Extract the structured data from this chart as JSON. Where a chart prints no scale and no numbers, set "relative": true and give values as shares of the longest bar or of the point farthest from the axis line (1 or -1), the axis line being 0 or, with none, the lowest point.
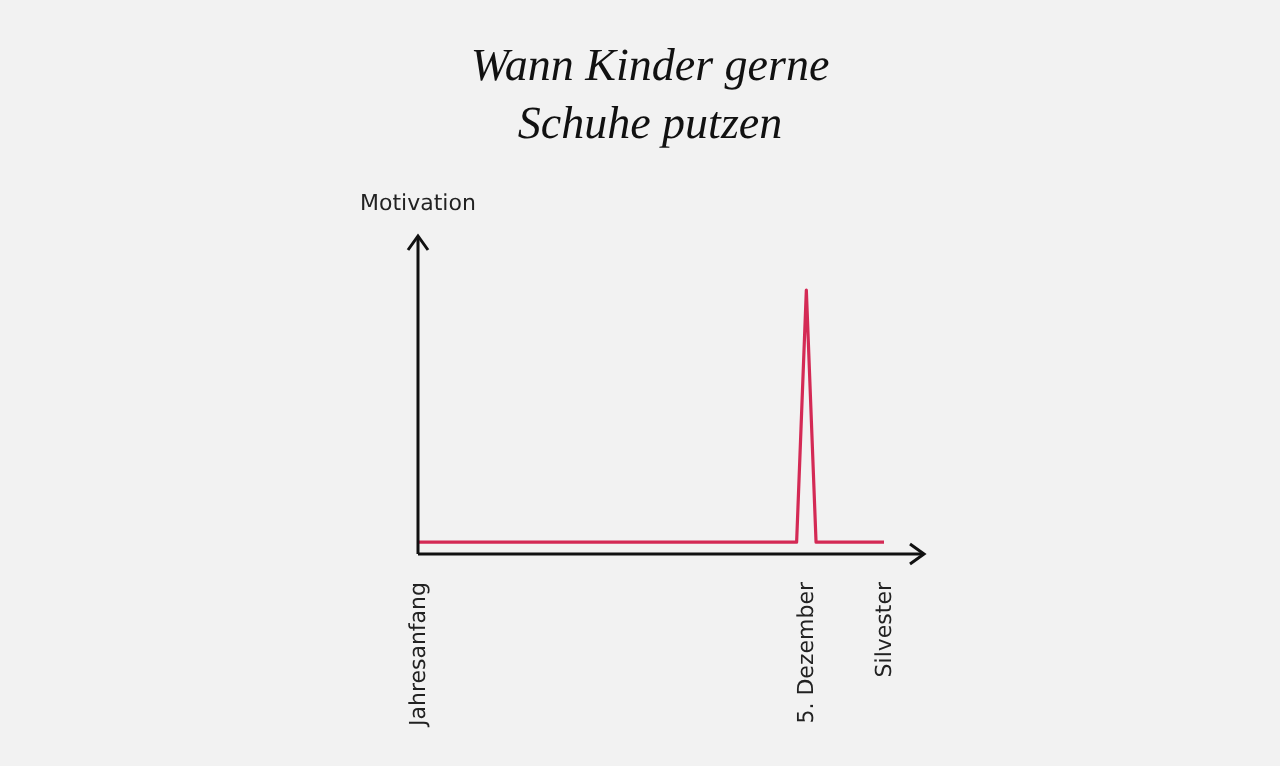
{
  "chart_data": {
    "type": "line",
    "title": "Wann Kinder gerne Schuhe putzen",
    "ylabel": "Motivation",
    "relative": true,
    "categories": [
      "Jahresanfang",
      null,
      null,
      null,
      null,
      null,
      null,
      null,
      null,
      null,
      null,
      null,
      null,
      null,
      null,
      null,
      null,
      null,
      null,
      null,
      null,
      null,
      null,
      null,
      null,
      null,
      null,
      null,
      null,
      null,
      null,
      null,
      null,
      null,
      null,
      null,
      null,
      null,
      null,
      null,
      "5. Dezember",
      null,
      null,
      null,
      null,
      null,
      null,
      null,
      "Silvester"
    ],
    "series": [
      {
        "color": "#d42a55",
        "values": [
          0.045,
          0.045,
          0.045,
          0.045,
          0.045,
          0.045,
          0.045,
          0.045,
          0.045,
          0.045,
          0.045,
          0.045,
          0.045,
          0.045,
          0.045,
          0.045,
          0.045,
          0.045,
          0.045,
          0.045,
          0.045,
          0.045,
          0.045,
          0.045,
          0.045,
          0.045,
          0.045,
          0.045,
          0.045,
          0.045,
          0.045,
          0.045,
          0.045,
          0.045,
          0.045,
          0.045,
          0.045,
          0.045,
          0.045,
          0.045,
          1,
          0.045,
          0.045,
          0.045,
          0.045,
          0.045,
          0.045,
          0.045,
          0.045
        ]
      }
    ],
    "grid": false,
    "legend": false,
    "marker": "none",
    "line_style": "solid"
  }
}
